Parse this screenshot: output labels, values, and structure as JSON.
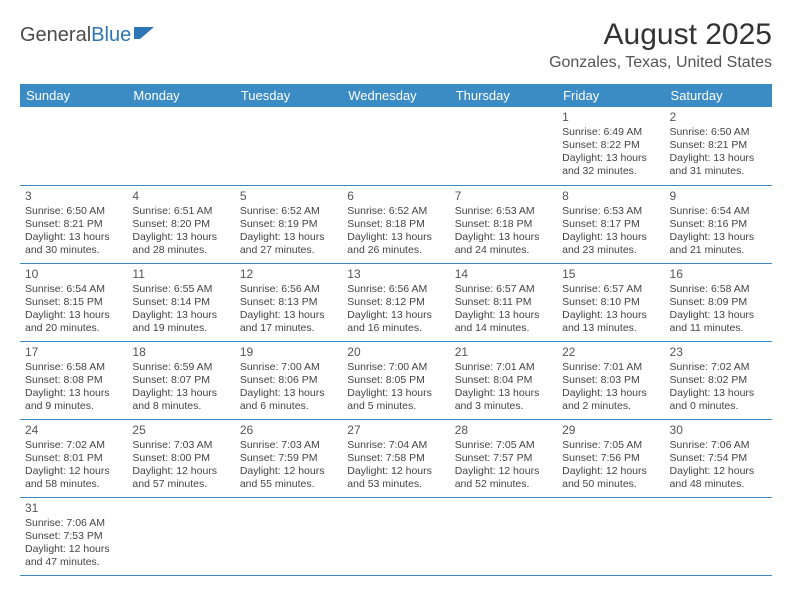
{
  "logo": {
    "text1": "General",
    "text2": "Blue",
    "icon_color": "#2e75b6",
    "text_color": "#4a4a4a"
  },
  "title": "August 2025",
  "location": "Gonzales, Texas, United States",
  "colors": {
    "header_bg": "#3b8bc4",
    "header_text": "#ffffff",
    "cell_border": "#3b8bc4",
    "body_text": "#444444",
    "title_text": "#333333"
  },
  "day_headers": [
    "Sunday",
    "Monday",
    "Tuesday",
    "Wednesday",
    "Thursday",
    "Friday",
    "Saturday"
  ],
  "weeks": [
    [
      null,
      null,
      null,
      null,
      null,
      {
        "d": "1",
        "sr": "6:49 AM",
        "ss": "8:22 PM",
        "dl": "13 hours and 32 minutes."
      },
      {
        "d": "2",
        "sr": "6:50 AM",
        "ss": "8:21 PM",
        "dl": "13 hours and 31 minutes."
      }
    ],
    [
      {
        "d": "3",
        "sr": "6:50 AM",
        "ss": "8:21 PM",
        "dl": "13 hours and 30 minutes."
      },
      {
        "d": "4",
        "sr": "6:51 AM",
        "ss": "8:20 PM",
        "dl": "13 hours and 28 minutes."
      },
      {
        "d": "5",
        "sr": "6:52 AM",
        "ss": "8:19 PM",
        "dl": "13 hours and 27 minutes."
      },
      {
        "d": "6",
        "sr": "6:52 AM",
        "ss": "8:18 PM",
        "dl": "13 hours and 26 minutes."
      },
      {
        "d": "7",
        "sr": "6:53 AM",
        "ss": "8:18 PM",
        "dl": "13 hours and 24 minutes."
      },
      {
        "d": "8",
        "sr": "6:53 AM",
        "ss": "8:17 PM",
        "dl": "13 hours and 23 minutes."
      },
      {
        "d": "9",
        "sr": "6:54 AM",
        "ss": "8:16 PM",
        "dl": "13 hours and 21 minutes."
      }
    ],
    [
      {
        "d": "10",
        "sr": "6:54 AM",
        "ss": "8:15 PM",
        "dl": "13 hours and 20 minutes."
      },
      {
        "d": "11",
        "sr": "6:55 AM",
        "ss": "8:14 PM",
        "dl": "13 hours and 19 minutes."
      },
      {
        "d": "12",
        "sr": "6:56 AM",
        "ss": "8:13 PM",
        "dl": "13 hours and 17 minutes."
      },
      {
        "d": "13",
        "sr": "6:56 AM",
        "ss": "8:12 PM",
        "dl": "13 hours and 16 minutes."
      },
      {
        "d": "14",
        "sr": "6:57 AM",
        "ss": "8:11 PM",
        "dl": "13 hours and 14 minutes."
      },
      {
        "d": "15",
        "sr": "6:57 AM",
        "ss": "8:10 PM",
        "dl": "13 hours and 13 minutes."
      },
      {
        "d": "16",
        "sr": "6:58 AM",
        "ss": "8:09 PM",
        "dl": "13 hours and 11 minutes."
      }
    ],
    [
      {
        "d": "17",
        "sr": "6:58 AM",
        "ss": "8:08 PM",
        "dl": "13 hours and 9 minutes."
      },
      {
        "d": "18",
        "sr": "6:59 AM",
        "ss": "8:07 PM",
        "dl": "13 hours and 8 minutes."
      },
      {
        "d": "19",
        "sr": "7:00 AM",
        "ss": "8:06 PM",
        "dl": "13 hours and 6 minutes."
      },
      {
        "d": "20",
        "sr": "7:00 AM",
        "ss": "8:05 PM",
        "dl": "13 hours and 5 minutes."
      },
      {
        "d": "21",
        "sr": "7:01 AM",
        "ss": "8:04 PM",
        "dl": "13 hours and 3 minutes."
      },
      {
        "d": "22",
        "sr": "7:01 AM",
        "ss": "8:03 PM",
        "dl": "13 hours and 2 minutes."
      },
      {
        "d": "23",
        "sr": "7:02 AM",
        "ss": "8:02 PM",
        "dl": "13 hours and 0 minutes."
      }
    ],
    [
      {
        "d": "24",
        "sr": "7:02 AM",
        "ss": "8:01 PM",
        "dl": "12 hours and 58 minutes."
      },
      {
        "d": "25",
        "sr": "7:03 AM",
        "ss": "8:00 PM",
        "dl": "12 hours and 57 minutes."
      },
      {
        "d": "26",
        "sr": "7:03 AM",
        "ss": "7:59 PM",
        "dl": "12 hours and 55 minutes."
      },
      {
        "d": "27",
        "sr": "7:04 AM",
        "ss": "7:58 PM",
        "dl": "12 hours and 53 minutes."
      },
      {
        "d": "28",
        "sr": "7:05 AM",
        "ss": "7:57 PM",
        "dl": "12 hours and 52 minutes."
      },
      {
        "d": "29",
        "sr": "7:05 AM",
        "ss": "7:56 PM",
        "dl": "12 hours and 50 minutes."
      },
      {
        "d": "30",
        "sr": "7:06 AM",
        "ss": "7:54 PM",
        "dl": "12 hours and 48 minutes."
      }
    ],
    [
      {
        "d": "31",
        "sr": "7:06 AM",
        "ss": "7:53 PM",
        "dl": "12 hours and 47 minutes."
      },
      null,
      null,
      null,
      null,
      null,
      null
    ]
  ],
  "labels": {
    "sunrise": "Sunrise: ",
    "sunset": "Sunset: ",
    "daylight": "Daylight: "
  }
}
